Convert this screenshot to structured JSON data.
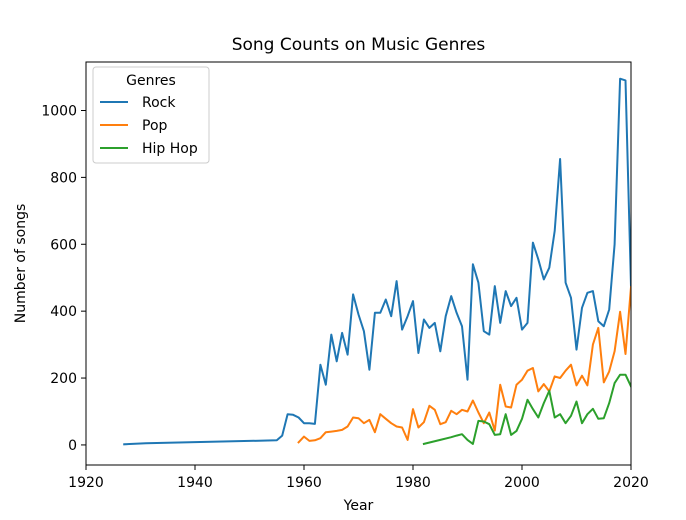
{
  "chart_data": {
    "type": "line",
    "title": "Song Counts on Music Genres",
    "xlabel": "Year",
    "ylabel": "Number of songs",
    "xlim": [
      1920,
      2020
    ],
    "ylim": [
      -60,
      1145
    ],
    "xticks": [
      1920,
      1940,
      1960,
      1980,
      2000,
      2020
    ],
    "yticks": [
      0,
      200,
      400,
      600,
      800,
      1000
    ],
    "grid": false,
    "legend": {
      "title": "Genres",
      "placement": "top-left"
    },
    "series": [
      {
        "name": "Rock",
        "color": "#1f77b4",
        "x": [
          1927,
          1931,
          1955,
          1956,
          1957,
          1958,
          1959,
          1960,
          1961,
          1962,
          1963,
          1964,
          1965,
          1966,
          1967,
          1968,
          1969,
          1970,
          1971,
          1972,
          1973,
          1974,
          1975,
          1976,
          1977,
          1978,
          1979,
          1980,
          1981,
          1982,
          1983,
          1984,
          1985,
          1986,
          1987,
          1988,
          1989,
          1990,
          1991,
          1992,
          1993,
          1994,
          1995,
          1996,
          1997,
          1998,
          1999,
          2000,
          2001,
          2002,
          2003,
          2004,
          2005,
          2006,
          2007,
          2008,
          2009,
          2010,
          2011,
          2012,
          2013,
          2014,
          2015,
          2016,
          2017,
          2018,
          2019,
          2020
        ],
        "values": [
          2,
          5,
          14,
          28,
          92,
          90,
          82,
          65,
          65,
          63,
          240,
          180,
          330,
          250,
          335,
          270,
          450,
          390,
          340,
          225,
          395,
          395,
          435,
          385,
          490,
          345,
          385,
          430,
          275,
          375,
          350,
          365,
          280,
          385,
          445,
          395,
          355,
          195,
          540,
          485,
          340,
          330,
          475,
          365,
          460,
          415,
          440,
          345,
          365,
          605,
          555,
          495,
          530,
          640,
          855,
          485,
          440,
          285,
          410,
          455,
          460,
          370,
          355,
          405,
          600,
          1095,
          1090,
          475
        ]
      },
      {
        "name": "Pop",
        "color": "#ff7f0e",
        "x": [
          1959,
          1960,
          1961,
          1962,
          1963,
          1964,
          1965,
          1966,
          1967,
          1968,
          1969,
          1970,
          1971,
          1972,
          1973,
          1974,
          1975,
          1976,
          1977,
          1978,
          1979,
          1980,
          1981,
          1982,
          1983,
          1984,
          1985,
          1986,
          1987,
          1988,
          1989,
          1990,
          1991,
          1992,
          1993,
          1994,
          1995,
          1996,
          1997,
          1998,
          1999,
          2000,
          2001,
          2002,
          2003,
          2004,
          2005,
          2006,
          2007,
          2008,
          2009,
          2010,
          2011,
          2012,
          2013,
          2014,
          2015,
          2016,
          2017,
          2018,
          2019,
          2020
        ],
        "values": [
          8,
          25,
          12,
          14,
          20,
          38,
          40,
          42,
          45,
          55,
          82,
          80,
          65,
          75,
          38,
          92,
          78,
          65,
          55,
          52,
          15,
          107,
          52,
          68,
          117,
          105,
          62,
          68,
          102,
          92,
          105,
          100,
          133,
          97,
          65,
          97,
          43,
          180,
          115,
          112,
          180,
          195,
          222,
          230,
          160,
          182,
          160,
          205,
          200,
          222,
          240,
          178,
          207,
          178,
          300,
          350,
          187,
          220,
          280,
          398,
          272,
          472
        ]
      },
      {
        "name": "Hip Hop",
        "color": "#2ca02c",
        "x": [
          1982,
          1985,
          1987,
          1988,
          1989,
          1990,
          1991,
          1992,
          1993,
          1994,
          1995,
          1996,
          1997,
          1998,
          1999,
          2000,
          2001,
          2002,
          2003,
          2004,
          2005,
          2006,
          2007,
          2008,
          2009,
          2010,
          2011,
          2012,
          2013,
          2014,
          2015,
          2016,
          2017,
          2018,
          2019,
          2020
        ],
        "values": [
          3,
          15,
          23,
          28,
          32,
          15,
          3,
          72,
          70,
          62,
          30,
          32,
          92,
          30,
          42,
          78,
          135,
          107,
          82,
          125,
          162,
          82,
          92,
          65,
          87,
          130,
          65,
          92,
          108,
          78,
          80,
          125,
          185,
          210,
          210,
          175
        ]
      }
    ]
  }
}
